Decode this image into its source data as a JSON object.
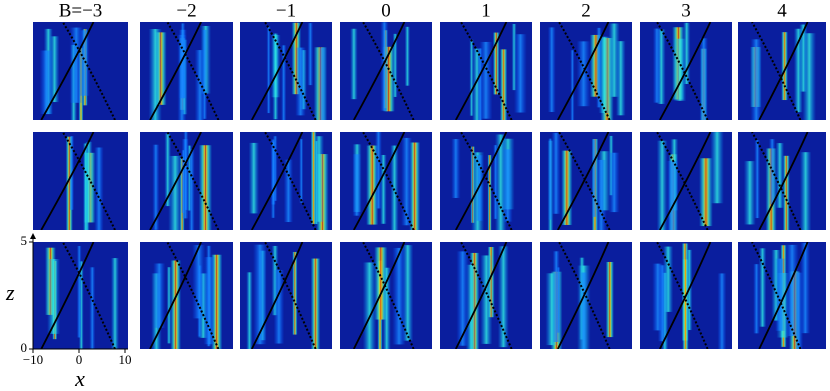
{
  "columns": {
    "labels": [
      "B=−3",
      "−2",
      "−1",
      "0",
      "1",
      "2",
      "3",
      "4"
    ]
  },
  "axes": {
    "y_label": "z",
    "x_label": "x",
    "ylim": [
      0,
      5
    ],
    "yticks": [
      0,
      5
    ],
    "xlim": [
      -10,
      10
    ],
    "xticks": [
      {
        "value": -10,
        "label": "−10"
      },
      0,
      10
    ]
  }
}
